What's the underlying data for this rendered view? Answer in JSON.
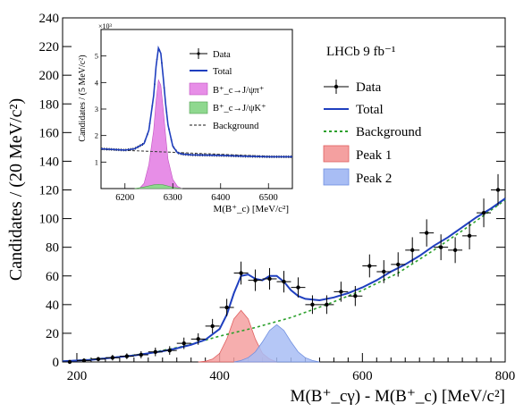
{
  "chart_data": [
    {
      "type": "scatter",
      "title": "",
      "xlabel": "M(B⁺_cγ) - M(B⁺_c) [MeV/c²]",
      "ylabel": "Candidates / (20 MeV/c²)",
      "annotation": "LHCb 9 fb⁻¹",
      "xlim": [
        180,
        800
      ],
      "ylim": [
        0,
        240
      ],
      "x_ticks": [
        200,
        400,
        600,
        800
      ],
      "y_ticks": [
        0,
        20,
        40,
        60,
        80,
        100,
        120,
        140,
        160,
        180,
        200,
        220,
        240
      ],
      "legend": {
        "placement": "top-right",
        "entries": [
          "Data",
          "Total",
          "Background",
          "Peak 1",
          "Peak 2"
        ]
      },
      "colors": {
        "data": "#000000",
        "total": "#1f3fbf",
        "background": "#2ca02c",
        "peak1": "#f08080",
        "peak2": "#7f9ff0"
      },
      "series": [
        {
          "name": "Data",
          "x": [
            190,
            210,
            230,
            250,
            270,
            290,
            310,
            330,
            350,
            370,
            390,
            410,
            430,
            450,
            470,
            490,
            510,
            530,
            550,
            570,
            590,
            610,
            630,
            650,
            670,
            690,
            710,
            730,
            750,
            770,
            790
          ],
          "y": [
            0,
            1,
            2,
            3,
            4,
            5,
            7,
            8,
            13,
            16,
            25,
            38,
            62,
            57,
            58,
            56,
            52,
            40,
            40,
            49,
            46,
            67,
            63,
            68,
            78,
            90,
            80,
            78,
            88,
            104,
            120
          ],
          "yerr": [
            1,
            1.5,
            1.5,
            2,
            2,
            2.5,
            3,
            3,
            4,
            4,
            5,
            6,
            8,
            7.5,
            7.5,
            7.5,
            7,
            6.5,
            6.5,
            7,
            7,
            8,
            8,
            8.5,
            9,
            9.5,
            9,
            9,
            9.5,
            10,
            11
          ]
        },
        {
          "name": "Total",
          "x": [
            180,
            200,
            220,
            240,
            260,
            280,
            300,
            320,
            340,
            360,
            380,
            400,
            410,
            420,
            430,
            440,
            450,
            460,
            470,
            480,
            490,
            500,
            510,
            520,
            540,
            560,
            580,
            600,
            620,
            640,
            660,
            680,
            700,
            720,
            740,
            760,
            780,
            800
          ],
          "y": [
            0.5,
            1,
            1.5,
            2.5,
            3.5,
            4.5,
            6,
            7.5,
            9.5,
            12,
            15.5,
            23,
            33,
            48,
            60,
            61,
            58,
            57,
            60,
            60,
            56,
            50,
            46,
            44,
            43,
            45,
            48,
            52,
            57,
            63,
            68,
            74,
            81,
            87,
            94,
            101,
            107,
            114
          ]
        },
        {
          "name": "Background",
          "x": [
            180,
            200,
            250,
            300,
            350,
            400,
            450,
            500,
            550,
            600,
            650,
            700,
            750,
            800
          ],
          "y": [
            0.5,
            1,
            3,
            6,
            11,
            18,
            24,
            31,
            40,
            50,
            62,
            78,
            95,
            113
          ]
        },
        {
          "name": "Peak 1",
          "x": [
            370,
            380,
            390,
            400,
            410,
            420,
            430,
            440,
            450,
            460,
            470,
            480
          ],
          "y": [
            0,
            0.5,
            2,
            6,
            16,
            30,
            36,
            30,
            16,
            6,
            2,
            0
          ]
        },
        {
          "name": "Peak 2",
          "x": [
            420,
            430,
            440,
            450,
            460,
            470,
            480,
            490,
            500,
            510,
            520,
            530,
            540
          ],
          "y": [
            0,
            1,
            3,
            7,
            14,
            22,
            26,
            22,
            14,
            7,
            3,
            1,
            0
          ]
        }
      ]
    },
    {
      "type": "line",
      "title": "",
      "xlabel": "M(B⁺_c) [MeV/c²]",
      "ylabel": "Candidates / (5 MeV/c²)",
      "y_multiplier": "×10³",
      "xlim": [
        6150,
        6550
      ],
      "ylim": [
        0,
        6
      ],
      "x_ticks": [
        6200,
        6300,
        6400,
        6500
      ],
      "y_ticks": [
        1,
        2,
        3,
        4,
        5
      ],
      "legend": {
        "placement": "top-right",
        "entries": [
          "Data",
          "Total",
          "B⁺_c→J/ψπ⁺",
          "B⁺_c→J/ψK⁺",
          "Background"
        ]
      },
      "colors": {
        "data": "#000000",
        "total": "#1f3fbf",
        "signal": "#e377e3",
        "kaon": "#7fcf7f",
        "background": "#444444"
      },
      "series": [
        {
          "name": "Total",
          "x": [
            6150,
            6200,
            6220,
            6240,
            6250,
            6260,
            6265,
            6270,
            6275,
            6280,
            6285,
            6290,
            6300,
            6310,
            6320,
            6340,
            6400,
            6450,
            6500,
            6550
          ],
          "y": [
            1.5,
            1.45,
            1.5,
            1.7,
            2.2,
            3.5,
            4.6,
            5.3,
            5.1,
            4.2,
            3.2,
            2.4,
            1.6,
            1.35,
            1.3,
            1.27,
            1.25,
            1.22,
            1.2,
            1.2
          ]
        },
        {
          "name": "B⁺_c→J/ψπ⁺",
          "x": [
            6230,
            6240,
            6250,
            6260,
            6265,
            6270,
            6275,
            6280,
            6285,
            6290,
            6300,
            6310,
            6320
          ],
          "y": [
            0,
            0.2,
            0.9,
            2.2,
            3.3,
            4.1,
            3.9,
            3.0,
            2.0,
            1.1,
            0.35,
            0.08,
            0
          ]
        },
        {
          "name": "B⁺_c→J/ψK⁺",
          "x": [
            6220,
            6240,
            6260,
            6270,
            6280,
            6300,
            6320
          ],
          "y": [
            0,
            0.06,
            0.14,
            0.16,
            0.14,
            0.05,
            0
          ]
        },
        {
          "name": "Background",
          "x": [
            6150,
            6550
          ],
          "y": [
            1.48,
            1.18
          ]
        }
      ]
    }
  ]
}
